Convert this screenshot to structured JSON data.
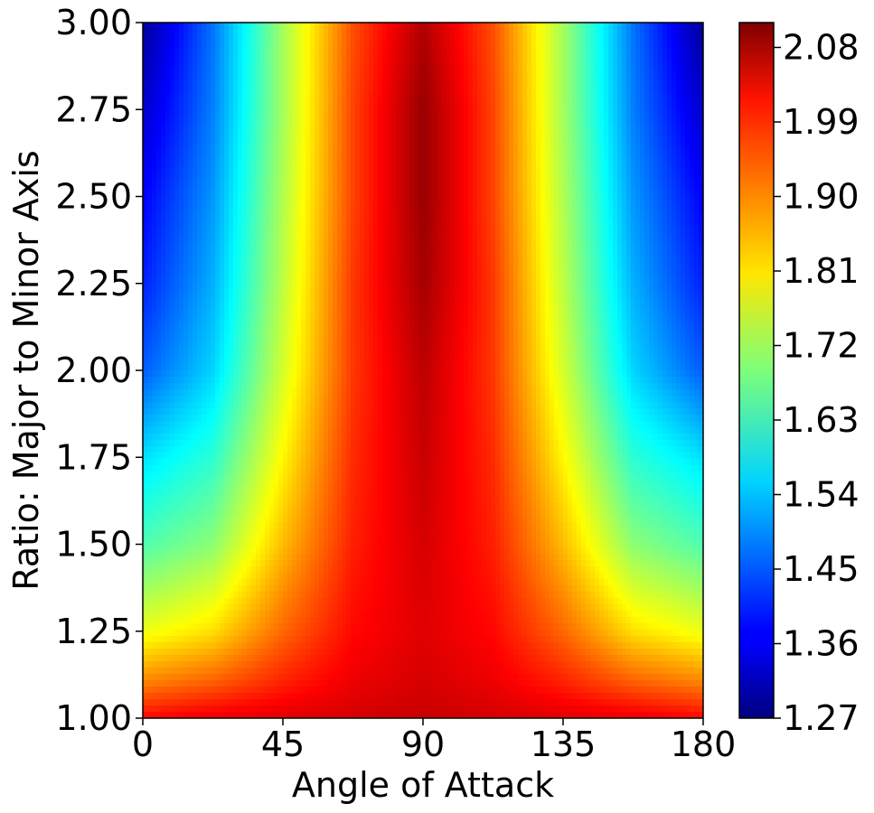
{
  "chart_data": {
    "type": "heatmap",
    "title": "",
    "xlabel": "Angle of Attack",
    "ylabel": "Ratio: Major to Minor Axis",
    "xlim": [
      0,
      180
    ],
    "ylim": [
      1.0,
      3.0
    ],
    "x_ticks": [
      "0",
      "45",
      "90",
      "135",
      "180"
    ],
    "y_ticks": [
      "1.00",
      "1.25",
      "1.50",
      "1.75",
      "2.00",
      "2.25",
      "2.50",
      "2.75",
      "3.00"
    ],
    "colorbar": {
      "colormap": "jet",
      "range": [
        1.27,
        2.11
      ],
      "ticks": [
        "1.27",
        "1.36",
        "1.45",
        "1.54",
        "1.63",
        "1.72",
        "1.81",
        "1.90",
        "1.99",
        "2.08"
      ]
    },
    "x": [
      0,
      22.5,
      45,
      67.5,
      90,
      112.5,
      135,
      157.5,
      180
    ],
    "y": [
      1.0,
      1.1,
      1.25,
      1.5,
      1.75,
      2.0,
      2.25,
      2.5,
      2.75,
      3.0
    ],
    "z": [
      [
        2.0,
        2.02,
        2.03,
        2.04,
        2.05,
        2.04,
        2.03,
        2.02,
        2.0
      ],
      [
        1.9,
        1.93,
        1.98,
        2.02,
        2.04,
        2.02,
        1.98,
        1.93,
        1.9
      ],
      [
        1.78,
        1.82,
        1.92,
        2.0,
        2.03,
        2.0,
        1.92,
        1.82,
        1.78
      ],
      [
        1.65,
        1.7,
        1.85,
        1.98,
        2.04,
        1.98,
        1.85,
        1.7,
        1.65
      ],
      [
        1.56,
        1.62,
        1.8,
        1.97,
        2.05,
        1.97,
        1.8,
        1.62,
        1.56
      ],
      [
        1.45,
        1.55,
        1.76,
        1.96,
        2.06,
        1.96,
        1.76,
        1.55,
        1.45
      ],
      [
        1.4,
        1.52,
        1.74,
        1.96,
        2.08,
        1.96,
        1.74,
        1.52,
        1.4
      ],
      [
        1.37,
        1.5,
        1.73,
        1.95,
        2.09,
        1.95,
        1.73,
        1.5,
        1.37
      ],
      [
        1.33,
        1.48,
        1.72,
        1.95,
        2.09,
        1.95,
        1.72,
        1.48,
        1.33
      ],
      [
        1.29,
        1.47,
        1.72,
        1.94,
        2.07,
        1.94,
        1.72,
        1.47,
        1.29
      ]
    ]
  }
}
